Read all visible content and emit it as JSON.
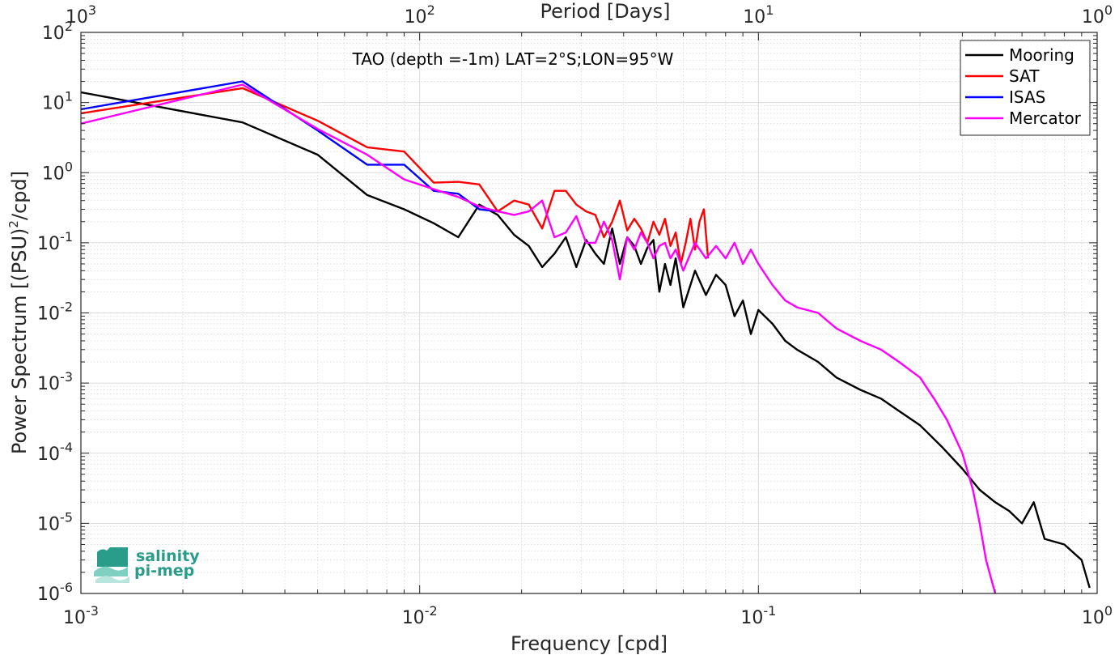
{
  "chart_data": {
    "type": "line",
    "title": "TAO (depth =-1m) LAT=2°S;LON=95°W",
    "xlabel": "Frequency [cpd]",
    "ylabel": "Power Spectrum [(PSU)²/cpd]",
    "ylabel_parts": {
      "main": "Power Spectrum [(PSU)",
      "sup": "2",
      "tail": "/cpd]"
    },
    "x2label": "Period [Days]",
    "x_scale": "log",
    "y_scale": "log",
    "xlim": [
      0.001,
      1
    ],
    "ylim": [
      1e-06,
      100
    ],
    "grid": true,
    "legend_position": "top-right",
    "x_ticks": [
      {
        "value": 0.001,
        "base": "10",
        "exp": "-3"
      },
      {
        "value": 0.01,
        "base": "10",
        "exp": "-2"
      },
      {
        "value": 0.1,
        "base": "10",
        "exp": "-1"
      },
      {
        "value": 1,
        "base": "10",
        "exp": "0"
      }
    ],
    "x2_ticks": [
      {
        "value": 1000,
        "base": "10",
        "exp": "3"
      },
      {
        "value": 100,
        "base": "10",
        "exp": "2"
      },
      {
        "value": 10,
        "base": "10",
        "exp": "1"
      },
      {
        "value": 1,
        "base": "10",
        "exp": "0"
      }
    ],
    "y_ticks": [
      {
        "value": 100,
        "base": "10",
        "exp": "2"
      },
      {
        "value": 10,
        "base": "10",
        "exp": "1"
      },
      {
        "value": 1,
        "base": "10",
        "exp": "0"
      },
      {
        "value": 0.1,
        "base": "10",
        "exp": "-1"
      },
      {
        "value": 0.01,
        "base": "10",
        "exp": "-2"
      },
      {
        "value": 0.001,
        "base": "10",
        "exp": "-3"
      },
      {
        "value": 0.0001,
        "base": "10",
        "exp": "-4"
      },
      {
        "value": 1e-05,
        "base": "10",
        "exp": "-5"
      },
      {
        "value": 1e-06,
        "base": "10",
        "exp": "-6"
      }
    ],
    "series": [
      {
        "name": "Mooring",
        "color": "#000000",
        "x": [
          0.001,
          0.003,
          0.005,
          0.007,
          0.009,
          0.011,
          0.013,
          0.015,
          0.017,
          0.019,
          0.021,
          0.023,
          0.025,
          0.027,
          0.029,
          0.031,
          0.033,
          0.035,
          0.037,
          0.039,
          0.041,
          0.043,
          0.045,
          0.047,
          0.049,
          0.051,
          0.053,
          0.055,
          0.057,
          0.06,
          0.065,
          0.07,
          0.075,
          0.08,
          0.085,
          0.09,
          0.095,
          0.1,
          0.11,
          0.12,
          0.13,
          0.15,
          0.17,
          0.2,
          0.23,
          0.26,
          0.3,
          0.35,
          0.4,
          0.45,
          0.5,
          0.55,
          0.6,
          0.65,
          0.7,
          0.8,
          0.9,
          0.95
        ],
        "y": [
          14,
          5.2,
          1.8,
          0.48,
          0.3,
          0.19,
          0.12,
          0.35,
          0.25,
          0.13,
          0.09,
          0.045,
          0.07,
          0.12,
          0.045,
          0.11,
          0.07,
          0.05,
          0.16,
          0.05,
          0.12,
          0.09,
          0.05,
          0.085,
          0.11,
          0.02,
          0.05,
          0.025,
          0.06,
          0.012,
          0.04,
          0.018,
          0.035,
          0.025,
          0.009,
          0.015,
          0.005,
          0.011,
          0.007,
          0.004,
          0.003,
          0.002,
          0.0012,
          0.0008,
          0.0006,
          0.0004,
          0.00025,
          0.00012,
          6e-05,
          3e-05,
          2e-05,
          1.5e-05,
          1e-05,
          2e-05,
          6e-06,
          5e-06,
          3e-06,
          1.2e-06
        ]
      },
      {
        "name": "SAT",
        "color": "#ff0000",
        "x": [
          0.001,
          0.003,
          0.005,
          0.007,
          0.009,
          0.011,
          0.013,
          0.015,
          0.017,
          0.019,
          0.021,
          0.023,
          0.025,
          0.027,
          0.029,
          0.031,
          0.033,
          0.035,
          0.037,
          0.039,
          0.041,
          0.043,
          0.045,
          0.047,
          0.049,
          0.051,
          0.053,
          0.055,
          0.057,
          0.059,
          0.061,
          0.063,
          0.065,
          0.067,
          0.069,
          0.071
        ],
        "y": [
          7,
          16,
          5.5,
          2.3,
          2,
          0.72,
          0.74,
          0.68,
          0.28,
          0.4,
          0.35,
          0.16,
          0.55,
          0.55,
          0.35,
          0.28,
          0.25,
          0.12,
          0.2,
          0.4,
          0.15,
          0.22,
          0.16,
          0.1,
          0.2,
          0.13,
          0.22,
          0.09,
          0.14,
          0.05,
          0.1,
          0.22,
          0.08,
          0.2,
          0.3,
          0.06
        ]
      },
      {
        "name": "ISAS",
        "color": "#0000ff",
        "x": [
          0.001,
          0.003,
          0.005,
          0.007,
          0.009,
          0.011,
          0.013,
          0.015,
          0.017
        ],
        "y": [
          8,
          20,
          4,
          1.3,
          1.3,
          0.55,
          0.5,
          0.3,
          0.28
        ]
      },
      {
        "name": "Mercator",
        "color": "#ff00ff",
        "x": [
          0.001,
          0.003,
          0.005,
          0.007,
          0.009,
          0.011,
          0.013,
          0.015,
          0.017,
          0.019,
          0.021,
          0.023,
          0.025,
          0.027,
          0.029,
          0.031,
          0.033,
          0.035,
          0.037,
          0.039,
          0.041,
          0.043,
          0.045,
          0.047,
          0.049,
          0.051,
          0.053,
          0.055,
          0.057,
          0.06,
          0.065,
          0.07,
          0.075,
          0.08,
          0.085,
          0.09,
          0.095,
          0.1,
          0.11,
          0.12,
          0.13,
          0.15,
          0.17,
          0.2,
          0.23,
          0.26,
          0.3,
          0.33,
          0.36,
          0.4,
          0.43,
          0.45,
          0.47,
          0.5
        ],
        "y": [
          5,
          18,
          4.2,
          1.8,
          0.8,
          0.58,
          0.45,
          0.33,
          0.28,
          0.25,
          0.28,
          0.4,
          0.12,
          0.14,
          0.24,
          0.1,
          0.1,
          0.2,
          0.11,
          0.03,
          0.12,
          0.08,
          0.14,
          0.1,
          0.06,
          0.09,
          0.1,
          0.06,
          0.08,
          0.04,
          0.1,
          0.06,
          0.09,
          0.06,
          0.1,
          0.05,
          0.08,
          0.05,
          0.025,
          0.015,
          0.012,
          0.01,
          0.006,
          0.004,
          0.003,
          0.002,
          0.0012,
          0.0006,
          0.0003,
          0.0001,
          3e-05,
          1e-05,
          3e-06,
          1e-06
        ]
      }
    ]
  },
  "logo": {
    "line1": "salinity",
    "line2": "pi-mep"
  }
}
